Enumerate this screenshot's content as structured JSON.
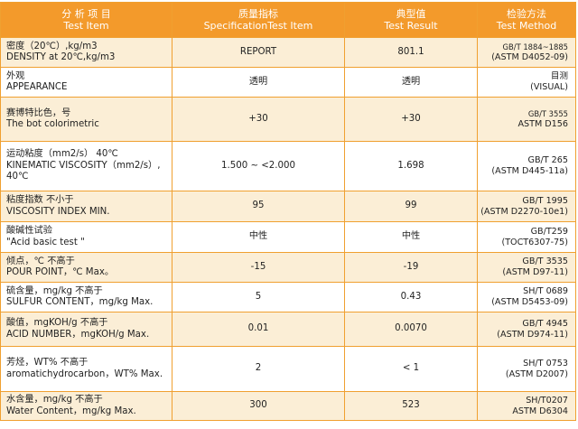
{
  "headers": [
    {
      "zh": "分 析 项 目",
      "en": "Test Item"
    },
    {
      "zh": "质量指标",
      "en": "SpecificationTest Item"
    },
    {
      "zh": "典型值",
      "en": "Test Result"
    },
    {
      "zh": "检验方法",
      "en": "Test Method"
    }
  ],
  "rows": [
    {
      "item": [
        "密度（20℃）,kg/m3",
        "DENSITY at 20℃,kg/m3"
      ],
      "spec": "REPORT",
      "result": "801.1",
      "method": [
        "GB/T 1884~1885",
        "(ASTM D4052-09)"
      ]
    },
    {
      "item": [
        "外观",
        "APPEARANCE"
      ],
      "spec": "透明",
      "result": "透明",
      "method": [
        "目测",
        "(VISUAL)"
      ]
    },
    {
      "item": [
        "赛博特比色，号",
        "The bot colorimetric"
      ],
      "spec": "+30",
      "result": "+30",
      "method": [
        "GB/T 3555",
        "ASTM D156"
      ]
    },
    {
      "item": [
        "运动粘度（mm2/s） 40℃",
        "KINEMATIC VISCOSITY（mm2/s）, 40℃"
      ],
      "spec": "1.500 ~ <2.000",
      "result": "1.698",
      "method": [
        "GB/T 265",
        "(ASTM D445-11a)"
      ]
    },
    {
      "item": [
        "粘度指数 不小于",
        "VISCOSITY INDEX MIN."
      ],
      "spec": "95",
      "result": "99",
      "method": [
        "GB/T 1995",
        "(ASTM D2270-10e1)"
      ]
    },
    {
      "item": [
        "酸碱性试验",
        "\"Acid basic test \""
      ],
      "spec": "中性",
      "result": "中性",
      "method": [
        "GB/T259",
        "(TOCT6307-75)"
      ]
    },
    {
      "item": [
        "倾点，℃ 不高于",
        "POUR POINT，℃ Max。"
      ],
      "spec": "-15",
      "result": "-19",
      "method": [
        "GB/T 3535",
        "(ASTM D97-11)"
      ]
    },
    {
      "item": [
        "硫含量，mg/kg 不高于",
        "SULFUR CONTENT，mg/kg Max."
      ],
      "spec": "5",
      "result": "0.43",
      "method": [
        "SH/T 0689",
        "(ASTM D5453-09)"
      ]
    },
    {
      "item": [
        "酸值，mgKOH/g 不高于",
        "ACID NUMBER，mgKOH/g Max."
      ],
      "spec": "0.01",
      "result": "0.0070",
      "method": [
        "GB/T 4945",
        "(ASTM D974-11)"
      ]
    },
    {
      "item": [
        "芳烃，WT% 不高于",
        "aromatichydrocarbon，WT% Max."
      ],
      "spec": "2",
      "result": "< 1",
      "method": [
        "SH/T 0753",
        "(ASTM D2007)"
      ]
    },
    {
      "item": [
        "水含量，mg/kg 不高于",
        "Water Content，mg/kg Max."
      ],
      "spec": "300",
      "result": "523",
      "method": [
        "SH/T0207",
        "ASTM D6304"
      ]
    }
  ],
  "colors": {
    "header": "#f39a2b",
    "alt_row": "#fbeed6",
    "border": "#f0a030"
  }
}
